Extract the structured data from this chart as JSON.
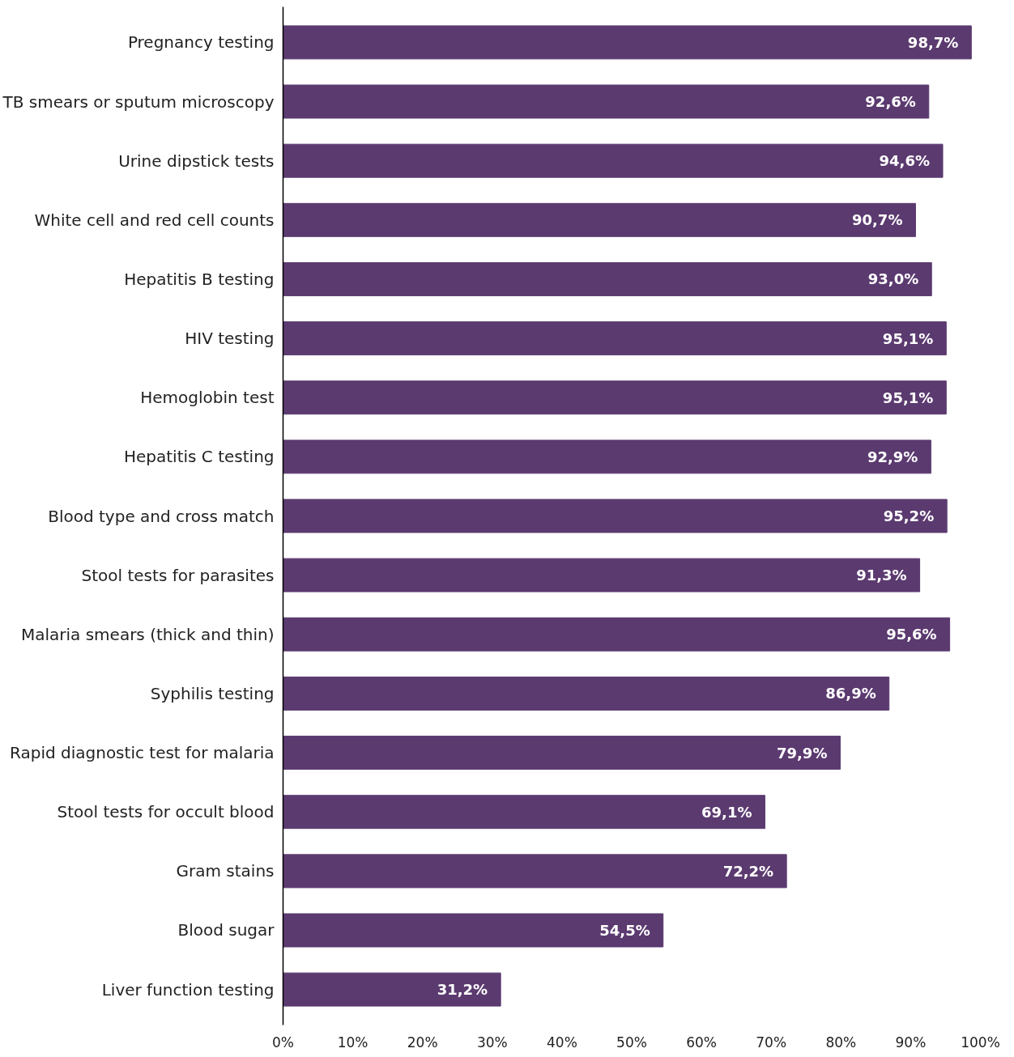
{
  "chart_data": {
    "type": "bar",
    "orientation": "horizontal",
    "categories": [
      "Pregnancy testing",
      "TB smears or sputum microscopy",
      "Urine dipstick tests",
      "White cell and red cell counts",
      "Hepatitis B testing",
      "HIV testing",
      "Hemoglobin test",
      "Hepatitis C testing",
      "Blood type and cross match",
      "Stool tests for parasites",
      "Malaria smears (thick and thin)",
      "Syphilis testing",
      "Rapid diagnostic test for malaria",
      "Stool tests for occult blood",
      "Gram stains",
      "Blood sugar",
      "Liver function testing"
    ],
    "values": [
      98.7,
      92.6,
      94.6,
      90.7,
      93.0,
      95.1,
      95.1,
      92.9,
      95.2,
      91.3,
      95.6,
      86.9,
      79.9,
      69.1,
      72.2,
      54.5,
      31.2
    ],
    "value_labels": [
      "98,7%",
      "92,6%",
      "94,6%",
      "90,7%",
      "93,0%",
      "95,1%",
      "95,1%",
      "92,9%",
      "95,2%",
      "91,3%",
      "95,6%",
      "86,9%",
      "79,9%",
      "69,1%",
      "72,2%",
      "54,5%",
      "31,2%"
    ],
    "color": "#5b3a70",
    "xlim": [
      0,
      100
    ],
    "xticks": [
      {
        "value": 0,
        "label": "0%"
      },
      {
        "value": 10,
        "label": "10%"
      },
      {
        "value": 20,
        "label": "20%"
      },
      {
        "value": 30,
        "label": "30%"
      },
      {
        "value": 40,
        "label": "40%"
      },
      {
        "value": 50,
        "label": "50%"
      },
      {
        "value": 60,
        "label": "60%"
      },
      {
        "value": 70,
        "label": "70%"
      },
      {
        "value": 80,
        "label": "80%"
      },
      {
        "value": 90,
        "label": "90%"
      },
      {
        "value": 100,
        "label": "100%"
      }
    ],
    "grid": false
  }
}
